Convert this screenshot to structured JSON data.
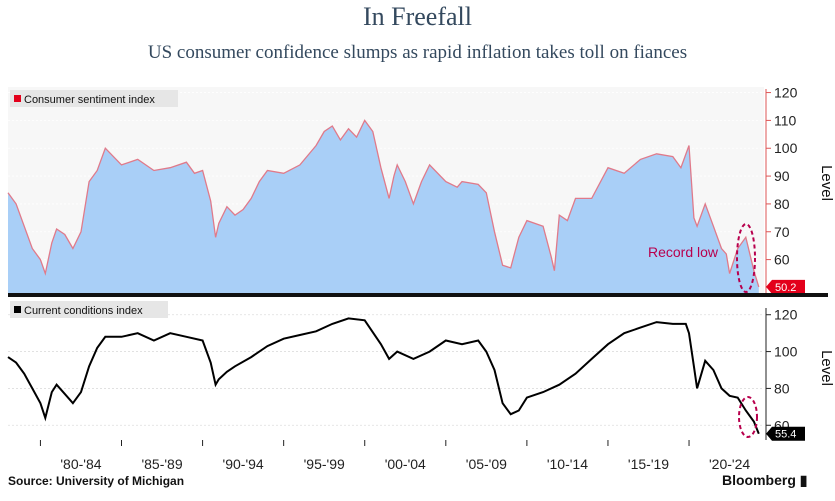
{
  "header": {
    "title": "In Freefall",
    "subtitle": "US consumer confidence slumps as rapid inflation takes toll on fiances"
  },
  "footer": {
    "source": "Source: University of Michigan",
    "brand": "Bloomberg"
  },
  "colors": {
    "top_fill": "#a9cff7",
    "top_line": "#e07a8a",
    "top_panel_bg": "#f7f7f7",
    "bottom_line": "#000000",
    "annotation": "#b8004d",
    "label_red": "#e3001b",
    "label_black": "#000000"
  },
  "chart_data": [
    {
      "type": "area",
      "series": [
        {
          "name": "Consumer sentiment index"
        }
      ],
      "legend": "Consumer sentiment index",
      "legend_position": "top-left",
      "ylabel": "Level",
      "ylim": [
        48,
        122
      ],
      "yticks": [
        60,
        70,
        80,
        90,
        100,
        110,
        120
      ],
      "xlim": [
        1978,
        2024.5
      ],
      "x_tick_labels": [
        "'80-'84",
        "'85-'89",
        "'90-'94",
        "'95-'99",
        "'00-'04",
        "'05-'09",
        "'10-'14",
        "'15-'19",
        "'20-'24"
      ],
      "x": [
        1978.0,
        1978.5,
        1979.0,
        1979.5,
        1980.0,
        1980.3,
        1980.7,
        1981.0,
        1981.5,
        1982.0,
        1982.5,
        1983.0,
        1983.5,
        1984.0,
        1984.5,
        1985.0,
        1986.0,
        1987.0,
        1988.0,
        1989.0,
        1989.5,
        1990.0,
        1990.5,
        1990.8,
        1991.0,
        1991.5,
        1992.0,
        1992.5,
        1993.0,
        1993.5,
        1994.0,
        1995.0,
        1996.0,
        1997.0,
        1997.5,
        1998.0,
        1998.5,
        1999.0,
        1999.5,
        2000.0,
        2000.5,
        2001.0,
        2001.5,
        2001.8,
        2002.0,
        2002.5,
        2003.0,
        2003.5,
        2004.0,
        2005.0,
        2005.7,
        2006.0,
        2007.0,
        2007.5,
        2008.0,
        2008.5,
        2009.0,
        2009.5,
        2010.0,
        2011.0,
        2011.5,
        2011.7,
        2012.0,
        2012.5,
        2013.0,
        2014.0,
        2015.0,
        2016.0,
        2017.0,
        2018.0,
        2019.0,
        2019.5,
        2020.0,
        2020.3,
        2020.5,
        2021.0,
        2021.5,
        2022.0,
        2022.3,
        2022.5,
        2023.0,
        2023.5,
        2024.0,
        2024.3
      ],
      "values": [
        84,
        80,
        72,
        64,
        60,
        55,
        66,
        71,
        69,
        64,
        70,
        88,
        92,
        100,
        97,
        94,
        96,
        92,
        93,
        95,
        91,
        92,
        81,
        68,
        73,
        79,
        76,
        78,
        82,
        88,
        92,
        91,
        94,
        101,
        106,
        108,
        103,
        107,
        104,
        110,
        106,
        93,
        82,
        90,
        94,
        88,
        80,
        88,
        94,
        88,
        86,
        88,
        87,
        84,
        70,
        58,
        57,
        68,
        74,
        72,
        61,
        56,
        76,
        74,
        82,
        82,
        93,
        91,
        96,
        98,
        97,
        93,
        101,
        75,
        72,
        80,
        72,
        64,
        62,
        55,
        64,
        68,
        56,
        50.2
      ],
      "last_value_label": "50.2",
      "annotation": "Record low"
    },
    {
      "type": "line",
      "series": [
        {
          "name": "Current conditions index"
        }
      ],
      "legend": "Current conditions index",
      "legend_position": "top-left",
      "ylabel": "Level",
      "ylim": [
        52,
        128
      ],
      "yticks": [
        60,
        80,
        100,
        120
      ],
      "xlim": [
        1978,
        2024.5
      ],
      "x": [
        1978.0,
        1978.5,
        1979.0,
        1979.5,
        1980.0,
        1980.3,
        1980.7,
        1981.0,
        1981.5,
        1982.0,
        1982.5,
        1983.0,
        1983.5,
        1984.0,
        1985.0,
        1986.0,
        1987.0,
        1988.0,
        1989.0,
        1990.0,
        1990.5,
        1990.8,
        1991.0,
        1991.5,
        1992.0,
        1993.0,
        1994.0,
        1995.0,
        1996.0,
        1997.0,
        1998.0,
        1999.0,
        2000.0,
        2001.0,
        2001.5,
        2002.0,
        2003.0,
        2004.0,
        2005.0,
        2006.0,
        2007.0,
        2007.5,
        2008.0,
        2008.5,
        2009.0,
        2009.5,
        2010.0,
        2011.0,
        2012.0,
        2013.0,
        2014.0,
        2015.0,
        2016.0,
        2017.0,
        2018.0,
        2019.0,
        2019.8,
        2020.0,
        2020.3,
        2020.5,
        2021.0,
        2021.5,
        2022.0,
        2022.5,
        2023.0,
        2023.5,
        2024.0,
        2024.3
      ],
      "values": [
        97,
        94,
        88,
        80,
        72,
        64,
        78,
        82,
        77,
        72,
        78,
        92,
        102,
        108,
        108,
        110,
        106,
        110,
        108,
        106,
        94,
        82,
        85,
        89,
        92,
        97,
        103,
        107,
        109,
        111,
        115,
        118,
        117,
        104,
        96,
        100,
        96,
        100,
        106,
        104,
        106,
        100,
        90,
        72,
        66,
        68,
        75,
        78,
        82,
        88,
        96,
        104,
        110,
        113,
        116,
        115,
        115,
        110,
        92,
        80,
        95,
        90,
        80,
        76,
        75,
        68,
        62,
        55.4
      ],
      "last_value_label": "55.4"
    }
  ]
}
